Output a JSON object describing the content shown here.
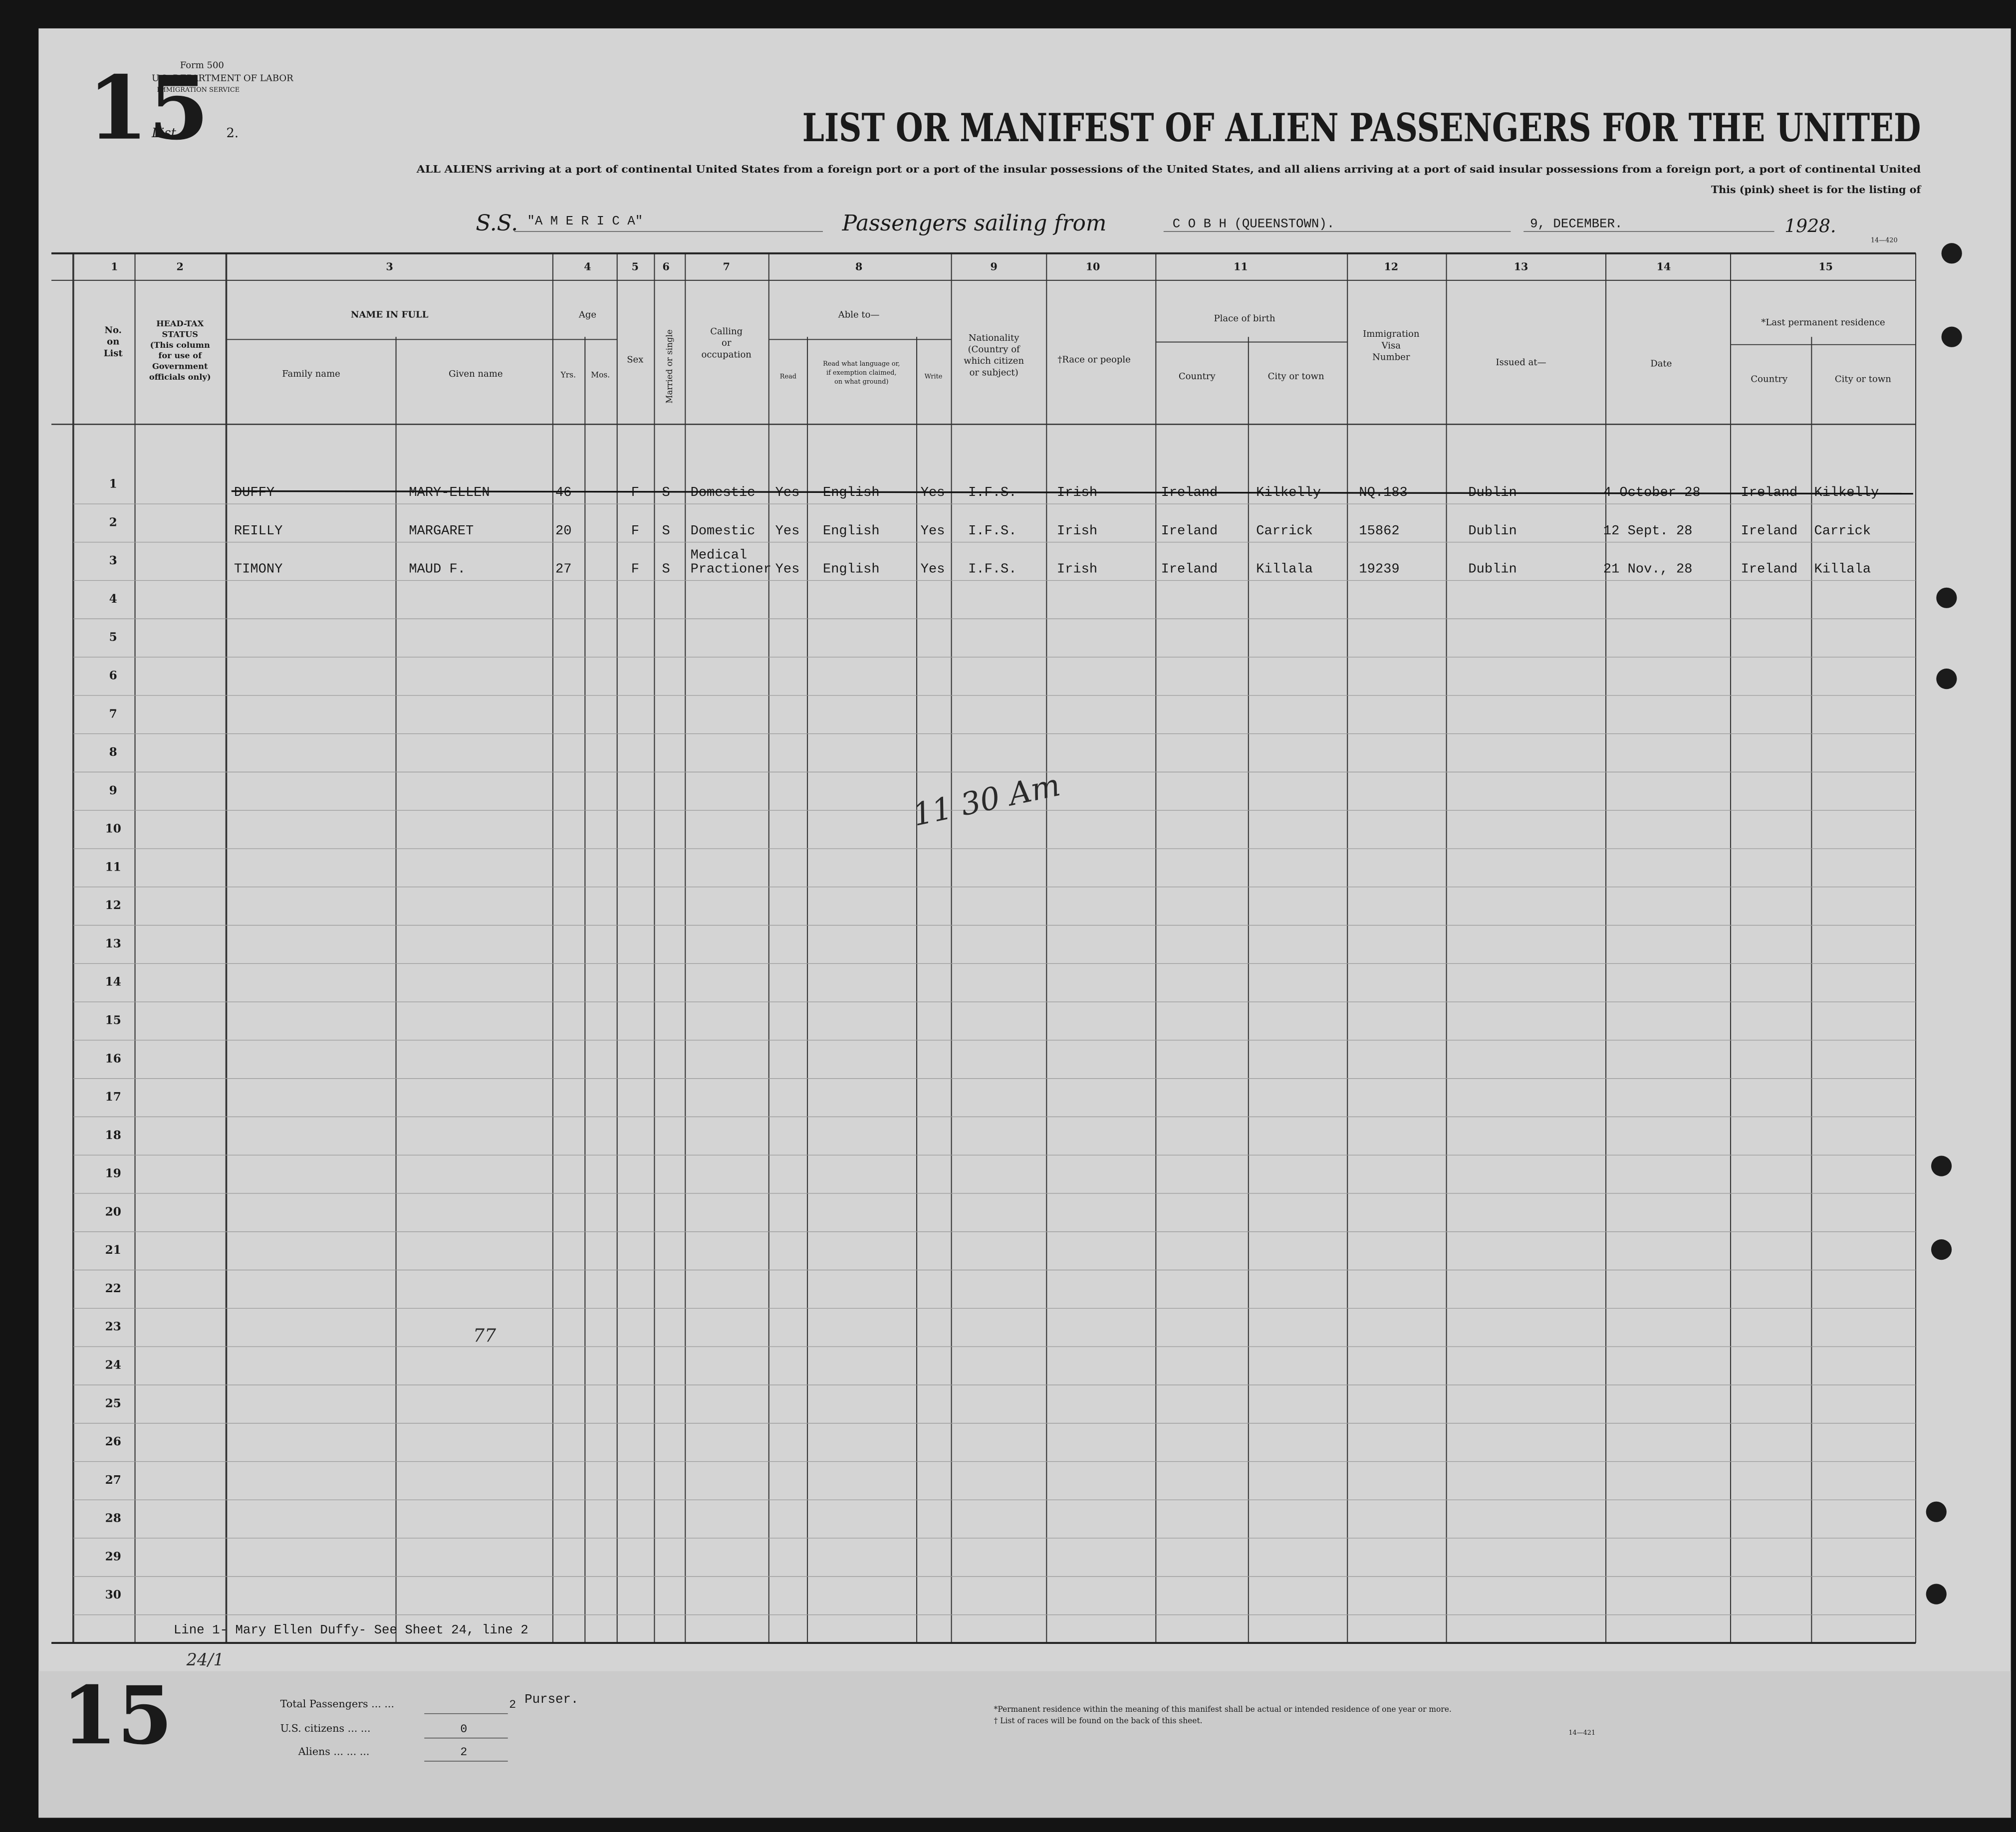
{
  "form": {
    "page_number": "15",
    "form_no": "Form 500",
    "department": "U.S. DEPARTMENT OF LABOR",
    "service": "IMMIGRATION SERVICE",
    "list_label": "List",
    "list_no": "2.",
    "form_code": "14—420"
  },
  "header": {
    "title": "LIST OR MANIFEST OF ALIEN PASSENGERS FOR THE UNITED",
    "subtitle": "ALL ALIENS arriving at a port of continental United States from a foreign port or a port of the insular possessions of the United States, and all aliens arriving at a port of said insular possessions from a foreign port, a port of continental United",
    "note": "This (pink) sheet is for the listing of",
    "ship_prefix": "S.S.",
    "ship": "\"A M E R I C A\"",
    "sailing_label": "Passengers sailing from",
    "port": "C O B H (QUEENSTOWN).",
    "date": "9, DECEMBER.",
    "year": "1928."
  },
  "column_numbers": [
    1,
    2,
    3,
    4,
    5,
    6,
    7,
    8,
    9,
    10,
    11,
    12,
    13,
    14,
    15
  ],
  "column_headers": [
    [
      "No.",
      "on",
      "List"
    ],
    [
      "HEAD-TAX",
      "STATUS",
      "(This column",
      "for use of",
      "Government",
      "officials only)"
    ],
    [
      "NAME IN FULL"
    ],
    [
      "Family name"
    ],
    [
      "Given name"
    ],
    [
      "Age"
    ],
    [
      "Yrs."
    ],
    [
      "Mos."
    ],
    [
      "Sex"
    ],
    [
      "Married or single"
    ],
    [
      "Calling",
      "or",
      "occupation"
    ],
    [
      "Able to—"
    ],
    [
      "Read"
    ],
    [
      "Read what language or,",
      "if exemption claimed,",
      "on what ground)"
    ],
    [
      "Write"
    ],
    [
      "Nationality",
      "(Country of",
      "which citizen",
      "or subject)"
    ],
    [
      "†Race or people"
    ],
    [
      "Place of birth"
    ],
    [
      "Country"
    ],
    [
      "City or town"
    ],
    [
      "Immigration",
      "Visa",
      "Number"
    ],
    [
      "Issued at—"
    ],
    [
      "Date"
    ],
    [
      "*Last permanent residence"
    ],
    [
      "Country"
    ],
    [
      "City or town"
    ]
  ],
  "line_numbers": [
    1,
    2,
    3,
    4,
    5,
    6,
    7,
    8,
    9,
    10,
    11,
    12,
    13,
    14,
    15,
    16,
    17,
    18,
    19,
    20,
    21,
    22,
    23,
    24,
    25,
    26,
    27,
    28,
    29,
    30
  ],
  "rows": [
    {
      "family_name": "DUFFY",
      "given_name": "MARY-ELLEN",
      "age": "46",
      "sex": "F",
      "married": "S",
      "occupation": [
        "Domestic"
      ],
      "read": "Yes",
      "language": "English",
      "write": "Yes",
      "nationality": "I.F.S.",
      "race": "Irish",
      "birth_country": "Ireland",
      "birth_city": "Kilkelly",
      "visa": "NQ.183",
      "issued_at": "Dublin",
      "date": "4 October 28",
      "res_country": "Ireland",
      "res_city": "Kilkelly"
    },
    {
      "family_name": "REILLY",
      "given_name": "MARGARET",
      "age": "20",
      "sex": "F",
      "married": "S",
      "occupation": [
        "Domestic"
      ],
      "read": "Yes",
      "language": "English",
      "write": "Yes",
      "nationality": "I.F.S.",
      "race": "Irish",
      "birth_country": "Ireland",
      "birth_city": "Carrick",
      "visa": "15862",
      "issued_at": "Dublin",
      "date": "12 Sept. 28",
      "res_country": "Ireland",
      "res_city": "Carrick"
    },
    {
      "family_name": "TIMONY",
      "given_name": "MAUD F.",
      "age": "27",
      "sex": "F",
      "married": "S",
      "occupation": [
        "Medical",
        "Practioner"
      ],
      "read": "Yes",
      "language": "English",
      "write": "Yes",
      "nationality": "I.F.S.",
      "race": "Irish",
      "birth_country": "Ireland",
      "birth_city": "Killala",
      "visa": "19239",
      "issued_at": "Dublin",
      "date": "21 Nov., 28",
      "res_country": "Ireland",
      "res_city": "Killala"
    }
  ],
  "annotations": [
    "11 30 Am",
    "77",
    "24/1"
  ],
  "footer": {
    "remark": "Line 1- Mary Ellen Duffy- See Sheet 24, line 2",
    "page_number": "15",
    "total_label": "Total Passengers ... ...",
    "total": "2",
    "citizens_label": "U.S. citizens ... ...",
    "citizens": "0",
    "aliens_label": "Aliens ... ... ...",
    "aliens": "2",
    "purser": "Purser.",
    "footnote_1": "*Permanent residence within the meaning of this manifest shall be actual or intended residence of one year or more.",
    "footnote_2": "† List of races will be found on the back of this sheet.",
    "form_code": "14—421"
  }
}
